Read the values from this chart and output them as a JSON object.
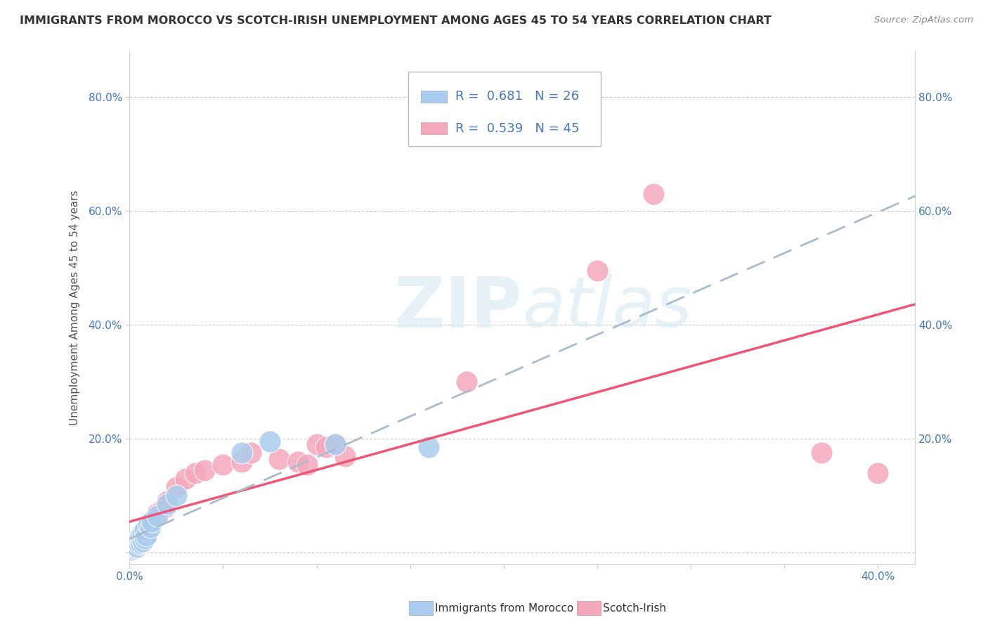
{
  "title": "IMMIGRANTS FROM MOROCCO VS SCOTCH-IRISH UNEMPLOYMENT AMONG AGES 45 TO 54 YEARS CORRELATION CHART",
  "source": "Source: ZipAtlas.com",
  "ylabel": "Unemployment Among Ages 45 to 54 years",
  "xlim": [
    0.0,
    0.42
  ],
  "ylim": [
    -0.02,
    0.88
  ],
  "xticks": [
    0.0,
    0.4
  ],
  "yticks": [
    0.0,
    0.2,
    0.4,
    0.6,
    0.8
  ],
  "grid_color": "#cccccc",
  "background_color": "#ffffff",
  "morocco_color": "#aaccee",
  "scotch_color": "#f4a8bc",
  "morocco_line_color": "#5588cc",
  "scotch_line_color": "#ee5577",
  "morocco_R": 0.681,
  "morocco_N": 26,
  "scotch_R": 0.539,
  "scotch_N": 45,
  "tick_color": "#4477bb",
  "watermark_color": "#d0e4f4",
  "title_fontsize": 11.5,
  "axis_label_fontsize": 11,
  "tick_fontsize": 11,
  "legend_fontsize": 13,
  "morocco_x": [
    0.001,
    0.002,
    0.002,
    0.003,
    0.003,
    0.004,
    0.004,
    0.005,
    0.005,
    0.006,
    0.006,
    0.007,
    0.007,
    0.008,
    0.008,
    0.009,
    0.01,
    0.011,
    0.012,
    0.015,
    0.02,
    0.025,
    0.06,
    0.075,
    0.11,
    0.16
  ],
  "morocco_y": [
    0.005,
    0.008,
    0.01,
    0.012,
    0.015,
    0.01,
    0.02,
    0.015,
    0.025,
    0.018,
    0.03,
    0.02,
    0.035,
    0.025,
    0.04,
    0.03,
    0.05,
    0.045,
    0.055,
    0.065,
    0.085,
    0.1,
    0.175,
    0.195,
    0.19,
    0.185
  ],
  "scotch_x": [
    0.001,
    0.001,
    0.002,
    0.002,
    0.003,
    0.003,
    0.004,
    0.004,
    0.005,
    0.005,
    0.006,
    0.006,
    0.007,
    0.007,
    0.008,
    0.008,
    0.009,
    0.01,
    0.011,
    0.012,
    0.013,
    0.014,
    0.015,
    0.017,
    0.019,
    0.02,
    0.025,
    0.03,
    0.035,
    0.04,
    0.05,
    0.06,
    0.065,
    0.08,
    0.09,
    0.095,
    0.1,
    0.105,
    0.11,
    0.115,
    0.18,
    0.25,
    0.28,
    0.37,
    0.4
  ],
  "scotch_y": [
    0.005,
    0.01,
    0.008,
    0.015,
    0.01,
    0.018,
    0.012,
    0.02,
    0.015,
    0.025,
    0.018,
    0.03,
    0.02,
    0.035,
    0.025,
    0.04,
    0.03,
    0.045,
    0.05,
    0.055,
    0.06,
    0.065,
    0.07,
    0.075,
    0.08,
    0.09,
    0.115,
    0.13,
    0.14,
    0.145,
    0.155,
    0.16,
    0.175,
    0.165,
    0.16,
    0.155,
    0.19,
    0.185,
    0.19,
    0.17,
    0.3,
    0.495,
    0.63,
    0.175,
    0.14
  ]
}
